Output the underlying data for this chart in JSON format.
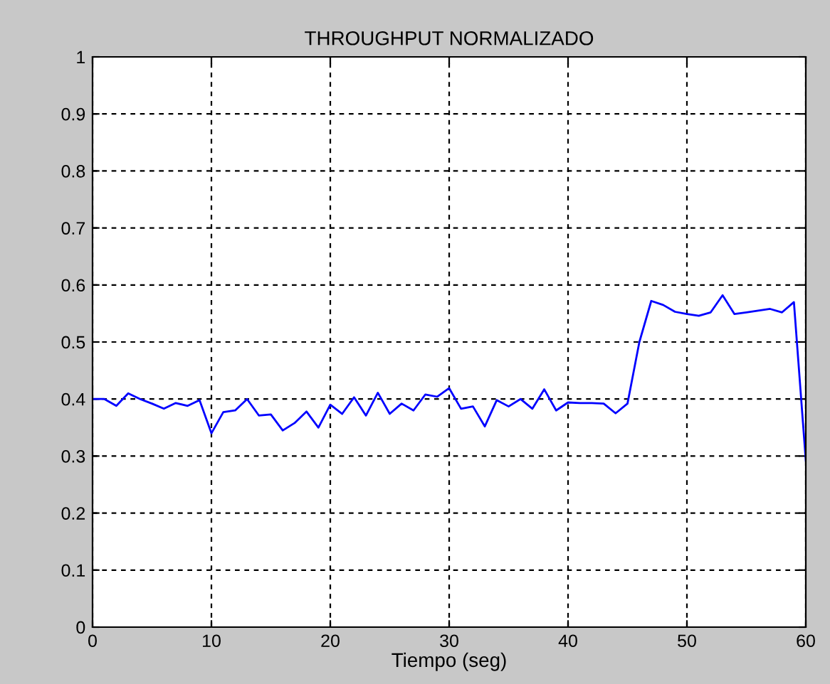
{
  "chart_data": {
    "type": "line",
    "title": "THROUGHPUT NORMALIZADO",
    "xlabel": "Tiempo (seg)",
    "x": [
      0,
      1,
      2,
      3,
      4,
      5,
      6,
      7,
      8,
      9,
      10,
      11,
      12,
      13,
      14,
      15,
      16,
      17,
      18,
      19,
      20,
      21,
      22,
      23,
      24,
      25,
      26,
      27,
      28,
      29,
      30,
      31,
      32,
      33,
      34,
      35,
      36,
      37,
      38,
      39,
      40,
      41,
      42,
      43,
      44,
      45,
      46,
      47,
      48,
      49,
      50,
      51,
      52,
      53,
      54,
      55,
      56,
      57,
      58,
      59,
      60
    ],
    "series": [
      {
        "color": "#0000ff",
        "values": [
          0.4,
          0.4,
          0.388,
          0.41,
          0.4,
          0.392,
          0.383,
          0.393,
          0.388,
          0.398,
          0.34,
          0.377,
          0.38,
          0.4,
          0.371,
          0.373,
          0.345,
          0.358,
          0.378,
          0.35,
          0.39,
          0.374,
          0.403,
          0.371,
          0.411,
          0.374,
          0.392,
          0.38,
          0.408,
          0.404,
          0.419,
          0.383,
          0.387,
          0.352,
          0.398,
          0.387,
          0.4,
          0.383,
          0.417,
          0.38,
          0.394,
          0.393,
          0.393,
          0.392,
          0.375,
          0.392,
          0.5,
          0.572,
          0.565,
          0.553,
          0.549,
          0.546,
          0.552,
          0.582,
          0.549,
          0.552,
          0.555,
          0.558,
          0.552,
          0.57,
          0.292
        ]
      }
    ],
    "xlim": [
      0,
      60
    ],
    "ylim": [
      0,
      1
    ],
    "xticks": [
      0,
      10,
      20,
      30,
      40,
      50,
      60
    ],
    "yticks": [
      0,
      0.1,
      0.2,
      0.3,
      0.4,
      0.5,
      0.6,
      0.7,
      0.8,
      0.9,
      1
    ],
    "grid": true,
    "line_style": "solid",
    "marker": "none"
  }
}
